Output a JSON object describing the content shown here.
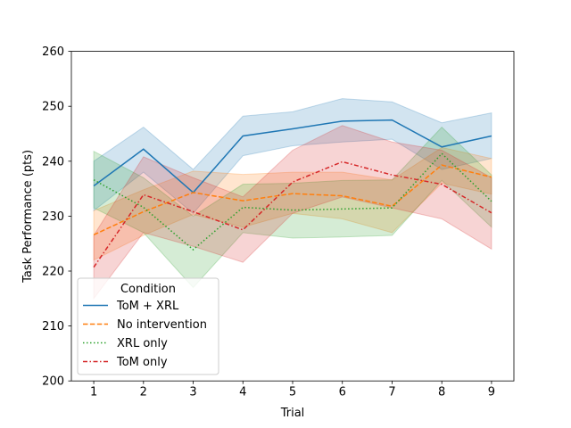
{
  "chart_data": {
    "type": "line",
    "title": "",
    "xlabel": "Trial",
    "ylabel": "Task Performance (pts)",
    "x": [
      1,
      2,
      3,
      4,
      5,
      6,
      7,
      8,
      9
    ],
    "xlim": [
      0.55,
      9.45
    ],
    "ylim": [
      200,
      260
    ],
    "xticks": [
      "1",
      "2",
      "3",
      "4",
      "5",
      "6",
      "7",
      "8",
      "9"
    ],
    "yticks": [
      "200",
      "210",
      "220",
      "230",
      "240",
      "250",
      "260"
    ],
    "grid": false,
    "legend": {
      "title": "Condition",
      "position": "lower-left"
    },
    "series": [
      {
        "name": "ToM + XRL",
        "color": "#1f77b4",
        "dash": "solid",
        "values": [
          235.5,
          242.2,
          234.3,
          244.6,
          245.9,
          247.3,
          247.5,
          242.6,
          244.6
        ],
        "ci_low": [
          231.0,
          238.0,
          230.5,
          241.0,
          242.8,
          243.5,
          244.0,
          238.5,
          240.5
        ],
        "ci_high": [
          240.0,
          246.2,
          238.5,
          248.2,
          249.0,
          251.4,
          250.8,
          247.0,
          248.8
        ]
      },
      {
        "name": "No intervention",
        "color": "#ff7f0e",
        "dash": "dashed",
        "values": [
          226.6,
          230.8,
          234.3,
          232.8,
          234.1,
          233.7,
          231.8,
          239.3,
          237.1
        ],
        "ci_low": [
          222.0,
          226.5,
          230.3,
          228.0,
          230.5,
          229.5,
          227.0,
          236.0,
          234.0
        ],
        "ci_high": [
          231.0,
          234.8,
          238.2,
          237.6,
          238.0,
          238.0,
          236.6,
          242.5,
          240.5
        ]
      },
      {
        "name": "XRL only",
        "color": "#2ca02c",
        "dash": "dotted",
        "values": [
          236.6,
          231.6,
          223.9,
          231.6,
          231.1,
          231.3,
          231.5,
          241.4,
          232.7
        ],
        "ci_low": [
          231.5,
          227.0,
          217.0,
          227.0,
          226.0,
          226.2,
          226.5,
          236.5,
          228.0
        ],
        "ci_high": [
          241.8,
          237.0,
          230.0,
          235.8,
          236.0,
          236.5,
          236.6,
          246.2,
          237.5
        ]
      },
      {
        "name": "ToM only",
        "color": "#d62728",
        "dash": "dashdot",
        "values": [
          220.7,
          233.9,
          230.8,
          227.5,
          236.2,
          239.9,
          237.5,
          235.8,
          230.6
        ],
        "ci_low": [
          215.0,
          227.0,
          224.5,
          221.6,
          230.5,
          233.5,
          231.5,
          229.5,
          224.0
        ],
        "ci_high": [
          226.5,
          240.8,
          237.0,
          233.5,
          242.0,
          246.5,
          243.5,
          242.0,
          237.0
        ]
      }
    ]
  }
}
